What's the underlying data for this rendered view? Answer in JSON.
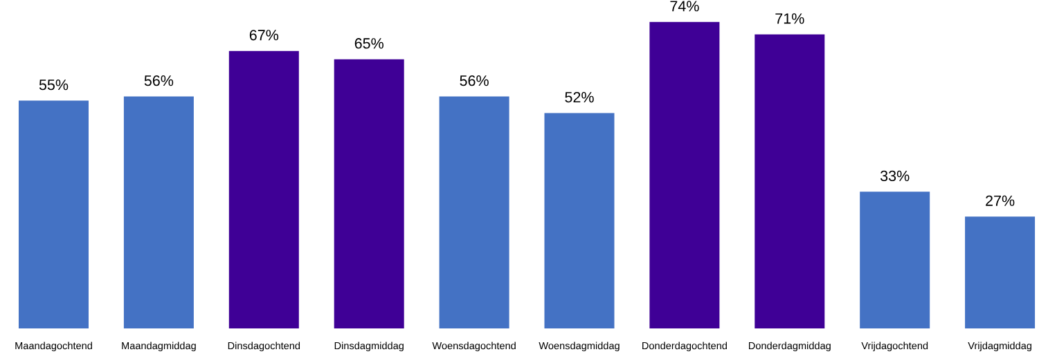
{
  "chart_data": {
    "type": "bar",
    "categories": [
      "Maandagochtend",
      "Maandagmiddag",
      "Dinsdagochtend",
      "Dinsdagmiddag",
      "Woensdagochtend",
      "Woensdagmiddag",
      "Donderdagochtend",
      "Donderdagmiddag",
      "Vrijdagochtend",
      "Vrijdagmiddag"
    ],
    "values": [
      55,
      56,
      67,
      65,
      56,
      52,
      74,
      71,
      33,
      27
    ],
    "colors": [
      "#4472c4",
      "#4472c4",
      "#3f0096",
      "#3f0096",
      "#4472c4",
      "#4472c4",
      "#3f0096",
      "#3f0096",
      "#4472c4",
      "#4472c4"
    ],
    "value_labels": [
      "55%",
      "56%",
      "67%",
      "65%",
      "56%",
      "52%",
      "74%",
      "71%",
      "33%",
      "27%"
    ],
    "grid": false,
    "legend": false
  }
}
